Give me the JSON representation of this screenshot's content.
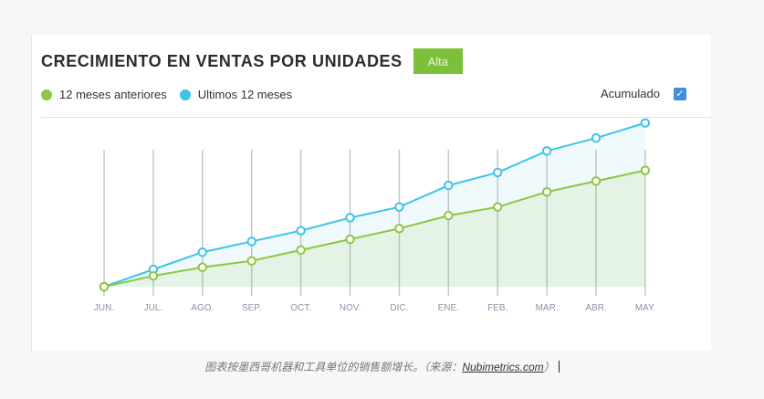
{
  "header": {
    "title": "CRECIMIENTO EN VENTAS POR UNIDADES",
    "badge": "Alta",
    "badge_color": "#7cbf3a"
  },
  "legend": {
    "items": [
      {
        "label": "12 meses anteriores",
        "color": "#8dc63f"
      },
      {
        "label": "Ultimos 12 meses",
        "color": "#3cc4e8"
      }
    ]
  },
  "toggle": {
    "label": "Acumulado",
    "checked": true,
    "color": "#3d8fe0",
    "check_glyph": "✓"
  },
  "caption": {
    "text": "图表按墨西哥机器和工具单位的销售额增长。（来源：",
    "source": "Nubimetrics.com",
    "close": "）"
  },
  "chart_data": {
    "type": "line",
    "categories": [
      "JUN.",
      "JUL.",
      "AGO.",
      "SEP.",
      "OCT.",
      "NOV.",
      "DIC.",
      "ENE.",
      "FEB.",
      "MAR.",
      "ABR.",
      "MAY."
    ],
    "series": [
      {
        "name": "12 meses anteriores",
        "color": "#8dc63f",
        "values": [
          0,
          5,
          9,
          12,
          17,
          22,
          27,
          33,
          37,
          44,
          49,
          54
        ]
      },
      {
        "name": "Ultimos 12 meses",
        "color": "#3cc4e8",
        "values": [
          0,
          8,
          16,
          21,
          26,
          32,
          37,
          47,
          53,
          63,
          69,
          76
        ]
      }
    ],
    "ylim": [
      0,
      100
    ],
    "grid": "vertical",
    "area_fill": true,
    "legend_position": "top-left"
  }
}
